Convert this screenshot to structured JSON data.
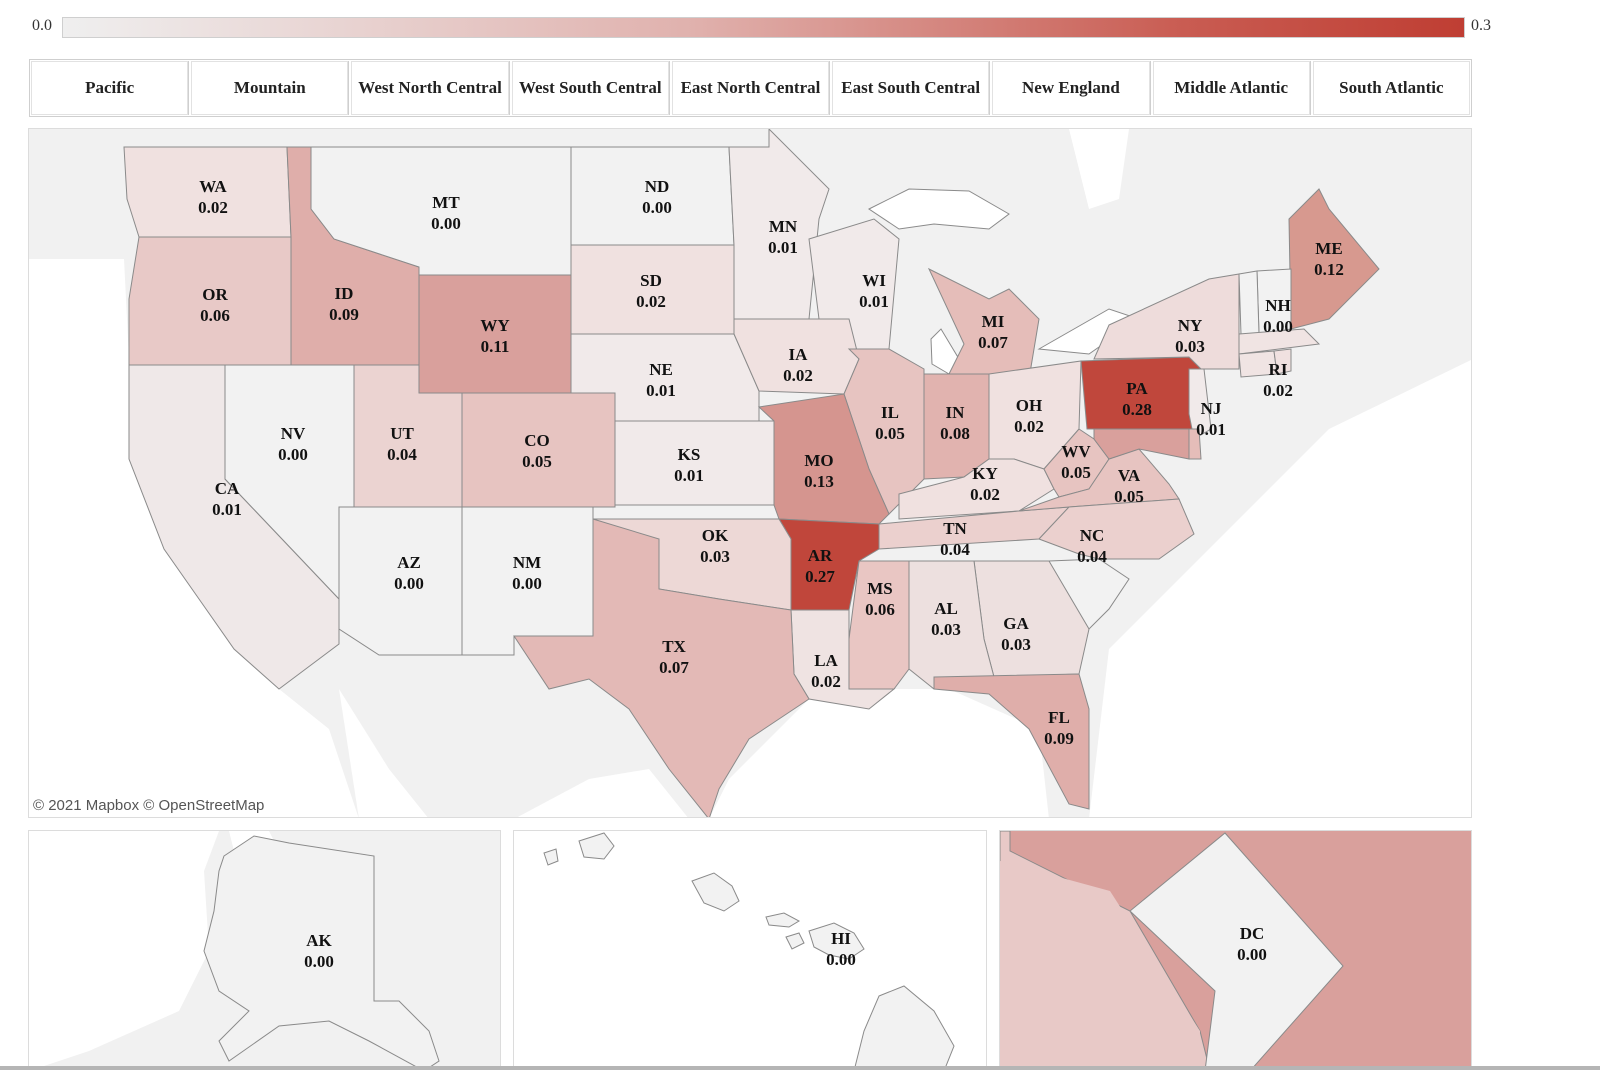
{
  "legend": {
    "min_label": "0.0",
    "max_label": "0.3",
    "gradient_colors": [
      "#efefef",
      "#e0b1ad",
      "#c95c52",
      "#bf3e33"
    ]
  },
  "regions": [
    "Pacific",
    "Mountain",
    "West North Central",
    "West South Central",
    "East North Central",
    "East South Central",
    "New England",
    "Middle Atlantic",
    "South Atlantic"
  ],
  "attribution": "© 2021 Mapbox © OpenStreetMap",
  "states": {
    "WA": "0.02",
    "OR": "0.06",
    "CA": "0.01",
    "ID": "0.09",
    "NV": "0.00",
    "MT": "0.00",
    "WY": "0.11",
    "UT": "0.04",
    "CO": "0.05",
    "AZ": "0.00",
    "NM": "0.00",
    "ND": "0.00",
    "SD": "0.02",
    "NE": "0.01",
    "KS": "0.01",
    "MN": "0.01",
    "IA": "0.02",
    "MO": "0.13",
    "OK": "0.03",
    "TX": "0.07",
    "AR": "0.27",
    "LA": "0.02",
    "WI": "0.01",
    "IL": "0.05",
    "MI": "0.07",
    "IN": "0.08",
    "OH": "0.02",
    "KY": "0.02",
    "TN": "0.04",
    "MS": "0.06",
    "AL": "0.03",
    "GA": "0.03",
    "FL": "0.09",
    "WV": "0.05",
    "VA": "0.05",
    "NC": "0.04",
    "PA": "0.28",
    "NY": "0.03",
    "NJ": "0.01",
    "ME": "0.12",
    "NH": "0.00",
    "RI": "0.02",
    "AK": "0.00",
    "HI": "0.00",
    "DC": "0.00"
  },
  "colors": {
    "land_bg": "#f1f1f1",
    "water": "#ffffff",
    "border": "#8a8a8a",
    "max": "#bf3e33"
  }
}
